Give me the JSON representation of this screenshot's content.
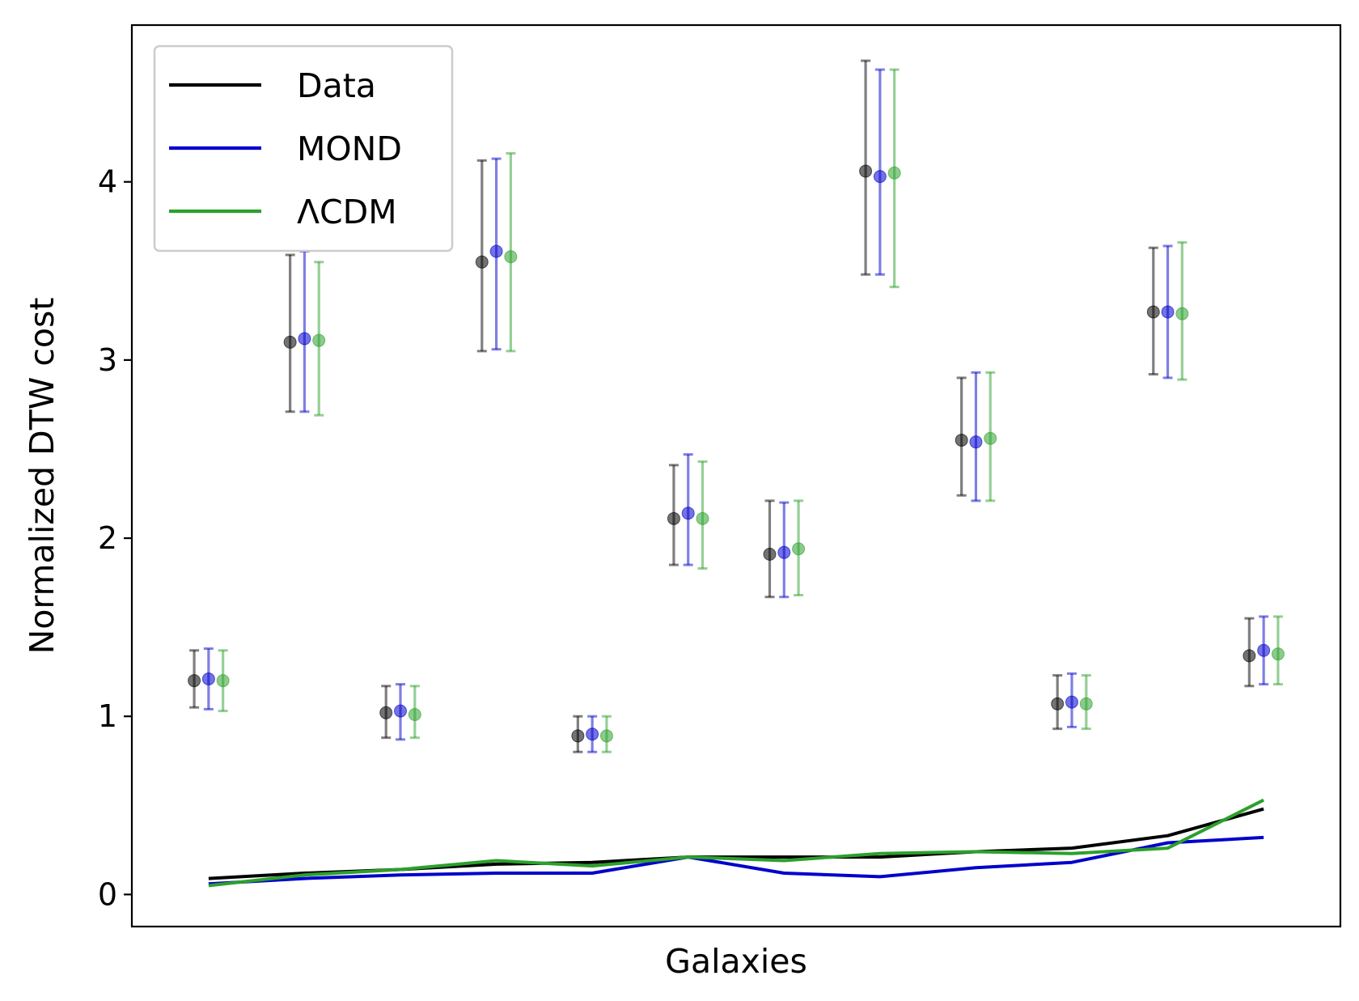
{
  "chart_data": {
    "type": "line",
    "xlabel": "Galaxies",
    "ylabel": "Normalized DTW cost",
    "ylim": [
      -0.18,
      4.88
    ],
    "yticks": [
      0,
      1,
      2,
      3,
      4
    ],
    "xticks": [],
    "grid": false,
    "legend": {
      "placement": "top-left",
      "entries": [
        {
          "label": "Data",
          "color": "#000000"
        },
        {
          "label": "MOND",
          "color": "#0000cc"
        },
        {
          "label": "ΛCDM",
          "color": "#2ca02c"
        }
      ]
    },
    "series": [
      {
        "name": "Data",
        "color": "#000000",
        "x": [
          0,
          1,
          2,
          3,
          4,
          5,
          6,
          7,
          8,
          9,
          10,
          11
        ],
        "values": [
          0.09,
          0.12,
          0.14,
          0.17,
          0.18,
          0.21,
          0.21,
          0.21,
          0.24,
          0.26,
          0.33,
          0.48
        ]
      },
      {
        "name": "MOND",
        "color": "#0000cc",
        "x": [
          0,
          1,
          2,
          3,
          4,
          5,
          6,
          7,
          8,
          9,
          10,
          11
        ],
        "values": [
          0.06,
          0.09,
          0.11,
          0.12,
          0.12,
          0.21,
          0.12,
          0.1,
          0.15,
          0.18,
          0.29,
          0.32
        ]
      },
      {
        "name": "ΛCDM",
        "color": "#2ca02c",
        "x": [
          0,
          1,
          2,
          3,
          4,
          5,
          6,
          7,
          8,
          9,
          10,
          11
        ],
        "values": [
          0.05,
          0.11,
          0.14,
          0.19,
          0.16,
          0.21,
          0.19,
          0.23,
          0.24,
          0.23,
          0.26,
          0.53
        ]
      }
    ],
    "errorbars": [
      {
        "name": "Data",
        "color": "#000000",
        "x": [
          -0.15,
          0.85,
          1.85,
          2.85,
          3.85,
          4.85,
          5.85,
          6.85,
          7.85,
          8.85,
          9.85,
          10.85
        ],
        "y": [
          1.2,
          3.1,
          1.02,
          3.55,
          0.89,
          2.11,
          1.91,
          4.06,
          2.55,
          1.07,
          3.27,
          1.34
        ],
        "lower": [
          1.05,
          2.71,
          0.88,
          3.05,
          0.8,
          1.85,
          1.67,
          3.48,
          2.24,
          0.93,
          2.92,
          1.17
        ],
        "upper": [
          1.37,
          3.59,
          1.17,
          4.12,
          1.0,
          2.41,
          2.21,
          4.68,
          2.9,
          1.23,
          3.63,
          1.55
        ]
      },
      {
        "name": "MOND",
        "color": "#0000cc",
        "x": [
          0,
          1,
          2,
          3,
          4,
          5,
          6,
          7,
          8,
          9,
          10,
          11
        ],
        "y": [
          1.21,
          3.12,
          1.03,
          3.61,
          0.9,
          2.14,
          1.92,
          4.03,
          2.54,
          1.08,
          3.27,
          1.37
        ],
        "lower": [
          1.04,
          2.71,
          0.87,
          3.06,
          0.8,
          1.85,
          1.67,
          3.48,
          2.21,
          0.94,
          2.9,
          1.18
        ],
        "upper": [
          1.38,
          3.61,
          1.18,
          4.13,
          1.0,
          2.47,
          2.2,
          4.63,
          2.93,
          1.24,
          3.64,
          1.56
        ]
      },
      {
        "name": "ΛCDM",
        "color": "#2ca02c",
        "x": [
          0.15,
          1.15,
          2.15,
          3.15,
          4.15,
          5.15,
          6.15,
          7.15,
          8.15,
          9.15,
          10.15,
          11.15
        ],
        "y": [
          1.2,
          3.11,
          1.01,
          3.58,
          0.89,
          2.11,
          1.94,
          4.05,
          2.56,
          1.07,
          3.26,
          1.35
        ],
        "lower": [
          1.03,
          2.69,
          0.88,
          3.05,
          0.8,
          1.83,
          1.68,
          3.41,
          2.21,
          0.93,
          2.89,
          1.18
        ],
        "upper": [
          1.37,
          3.55,
          1.17,
          4.16,
          1.0,
          2.43,
          2.21,
          4.63,
          2.93,
          1.23,
          3.66,
          1.56
        ]
      }
    ]
  }
}
